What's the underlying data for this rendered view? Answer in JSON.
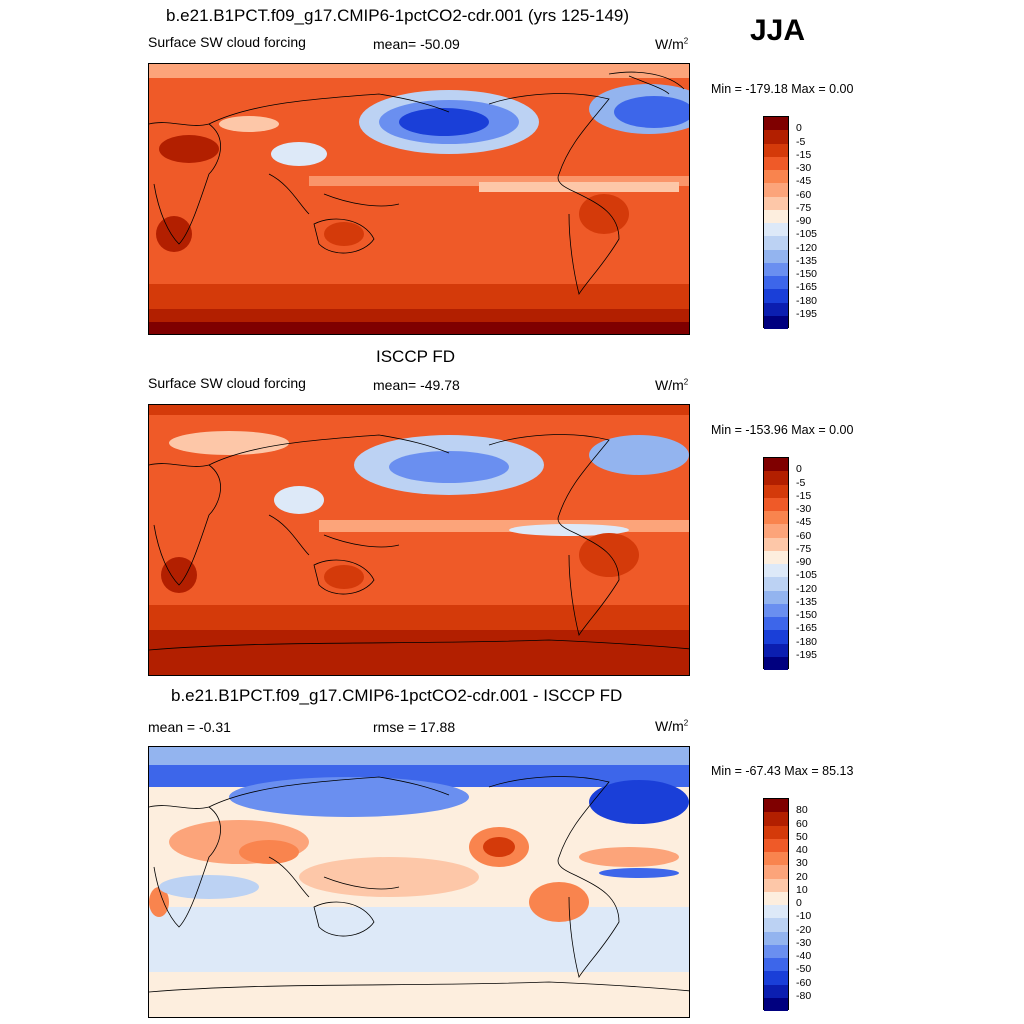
{
  "season": "JJA",
  "units_base": "W/m",
  "units_exp": "2",
  "panels": [
    {
      "title": "b.e21.B1PCT.f09_g17.CMIP6-1pctCO2-cdr.001 (yrs 125-149)",
      "left_label": "Surface SW cloud forcing",
      "center_label": "mean= -50.09",
      "minmax": "Min = -179.18 Max =    0.00"
    },
    {
      "title": "ISCCP FD",
      "left_label": "Surface SW cloud forcing",
      "center_label": "mean= -49.78",
      "minmax": "Min = -153.96 Max =    0.00"
    },
    {
      "title": "b.e21.B1PCT.f09_g17.CMIP6-1pctCO2-cdr.001 - ISCCP FD",
      "left_label": "mean =  -0.31",
      "center_label": "rmse =  17.88",
      "minmax": "Min = -67.43 Max =  85.13"
    }
  ],
  "colorbar_abs": {
    "labels": [
      "0",
      "-5",
      "-15",
      "-30",
      "-45",
      "-60",
      "-75",
      "-90",
      "-105",
      "-120",
      "-135",
      "-150",
      "-165",
      "-180",
      "-195"
    ],
    "colors": [
      "#7f0000",
      "#b21f00",
      "#d43a0a",
      "#ef5a28",
      "#f9844e",
      "#fca47a",
      "#fdc7a8",
      "#fdeede",
      "#dde9f8",
      "#bcd2f3",
      "#93b4ef",
      "#6a8ff0",
      "#3d66ea",
      "#1a3fd8",
      "#0b1eb0",
      "#00007f"
    ]
  },
  "colorbar_diff": {
    "labels": [
      "80",
      "60",
      "50",
      "40",
      "30",
      "20",
      "10",
      "0",
      "-10",
      "-20",
      "-30",
      "-40",
      "-50",
      "-60",
      "-80"
    ],
    "colors": [
      "#7f0000",
      "#b21f00",
      "#d43a0a",
      "#ef5a28",
      "#f9844e",
      "#fca47a",
      "#fdc7a8",
      "#fdeede",
      "#dde9f8",
      "#bcd2f3",
      "#93b4ef",
      "#6a8ff0",
      "#3d66ea",
      "#1a3fd8",
      "#0b1eb0",
      "#00007f"
    ]
  }
}
